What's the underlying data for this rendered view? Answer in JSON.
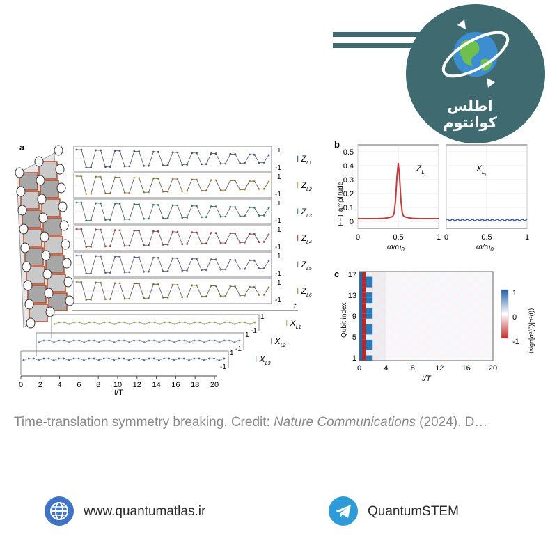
{
  "brand": {
    "name": "اطلس کوانتوم",
    "logo_icon": "globe-orbit-icon"
  },
  "figure": {
    "panel_a": {
      "label": "a",
      "z_series": [
        {
          "name": "Z",
          "sub": "L1",
          "color": "#3d5a9e"
        },
        {
          "name": "Z",
          "sub": "L2",
          "color": "#e0a428"
        },
        {
          "name": "Z",
          "sub": "L3",
          "color": "#2b9a7a"
        },
        {
          "name": "Z",
          "sub": "L4",
          "color": "#c83c3c"
        },
        {
          "name": "Z",
          "sub": "L5",
          "color": "#6a76b8"
        },
        {
          "name": "Z",
          "sub": "L6",
          "color": "#b0883a"
        }
      ],
      "x_series": [
        {
          "name": "X",
          "sub": "L1",
          "color": "#b5b040"
        },
        {
          "name": "X",
          "sub": "L2",
          "color": "#6a88c8"
        },
        {
          "name": "X",
          "sub": "L3",
          "color": "#3d5a9e"
        }
      ],
      "y_tick_top": "1",
      "y_tick_bottom": "-1",
      "t_axis_label": "t",
      "x_axis_label": "t/T",
      "x_ticks": [
        "0",
        "2",
        "4",
        "6",
        "8",
        "10",
        "12",
        "14",
        "16",
        "18",
        "20"
      ]
    },
    "panel_b": {
      "label": "b",
      "y_axis_label": "FFT amplitude",
      "y_ticks": [
        "0",
        "0.1",
        "0.2",
        "0.3",
        "0.4",
        "0.5"
      ],
      "x_ticks": [
        "0",
        "0.5",
        "1"
      ],
      "x_axis_label": "ω/ω",
      "x_axis_sub": "0",
      "left_series": {
        "name": "Z",
        "sub": "L",
        "subsub": "i"
      },
      "right_series": {
        "name": "X",
        "sub": "L",
        "subsub": "i"
      },
      "left_color": "#c23a3a",
      "right_color": "#3d5a9e"
    },
    "panel_c": {
      "label": "c",
      "y_axis_label": "Qubit index",
      "y_ticks": [
        "1",
        "5",
        "9",
        "13",
        "17"
      ],
      "x_ticks": [
        "0",
        "4",
        "8",
        "12",
        "16",
        "20"
      ],
      "x_axis_label": "t/T",
      "colorbar_ticks": [
        "1",
        "0",
        "-1"
      ],
      "colorbar_label": "⟨sign[σᶻ(0)]σᶻ(t)⟩"
    }
  },
  "caption": {
    "text": "Time-translation symmetry breaking. Credit: ",
    "journal": "Nature Communications",
    "suffix": " (2024). D…"
  },
  "footer": {
    "website": "www.quantumatlas.ir",
    "telegram": "QuantumSTEM",
    "website_icon": "globe-icon",
    "telegram_icon": "telegram-icon"
  }
}
